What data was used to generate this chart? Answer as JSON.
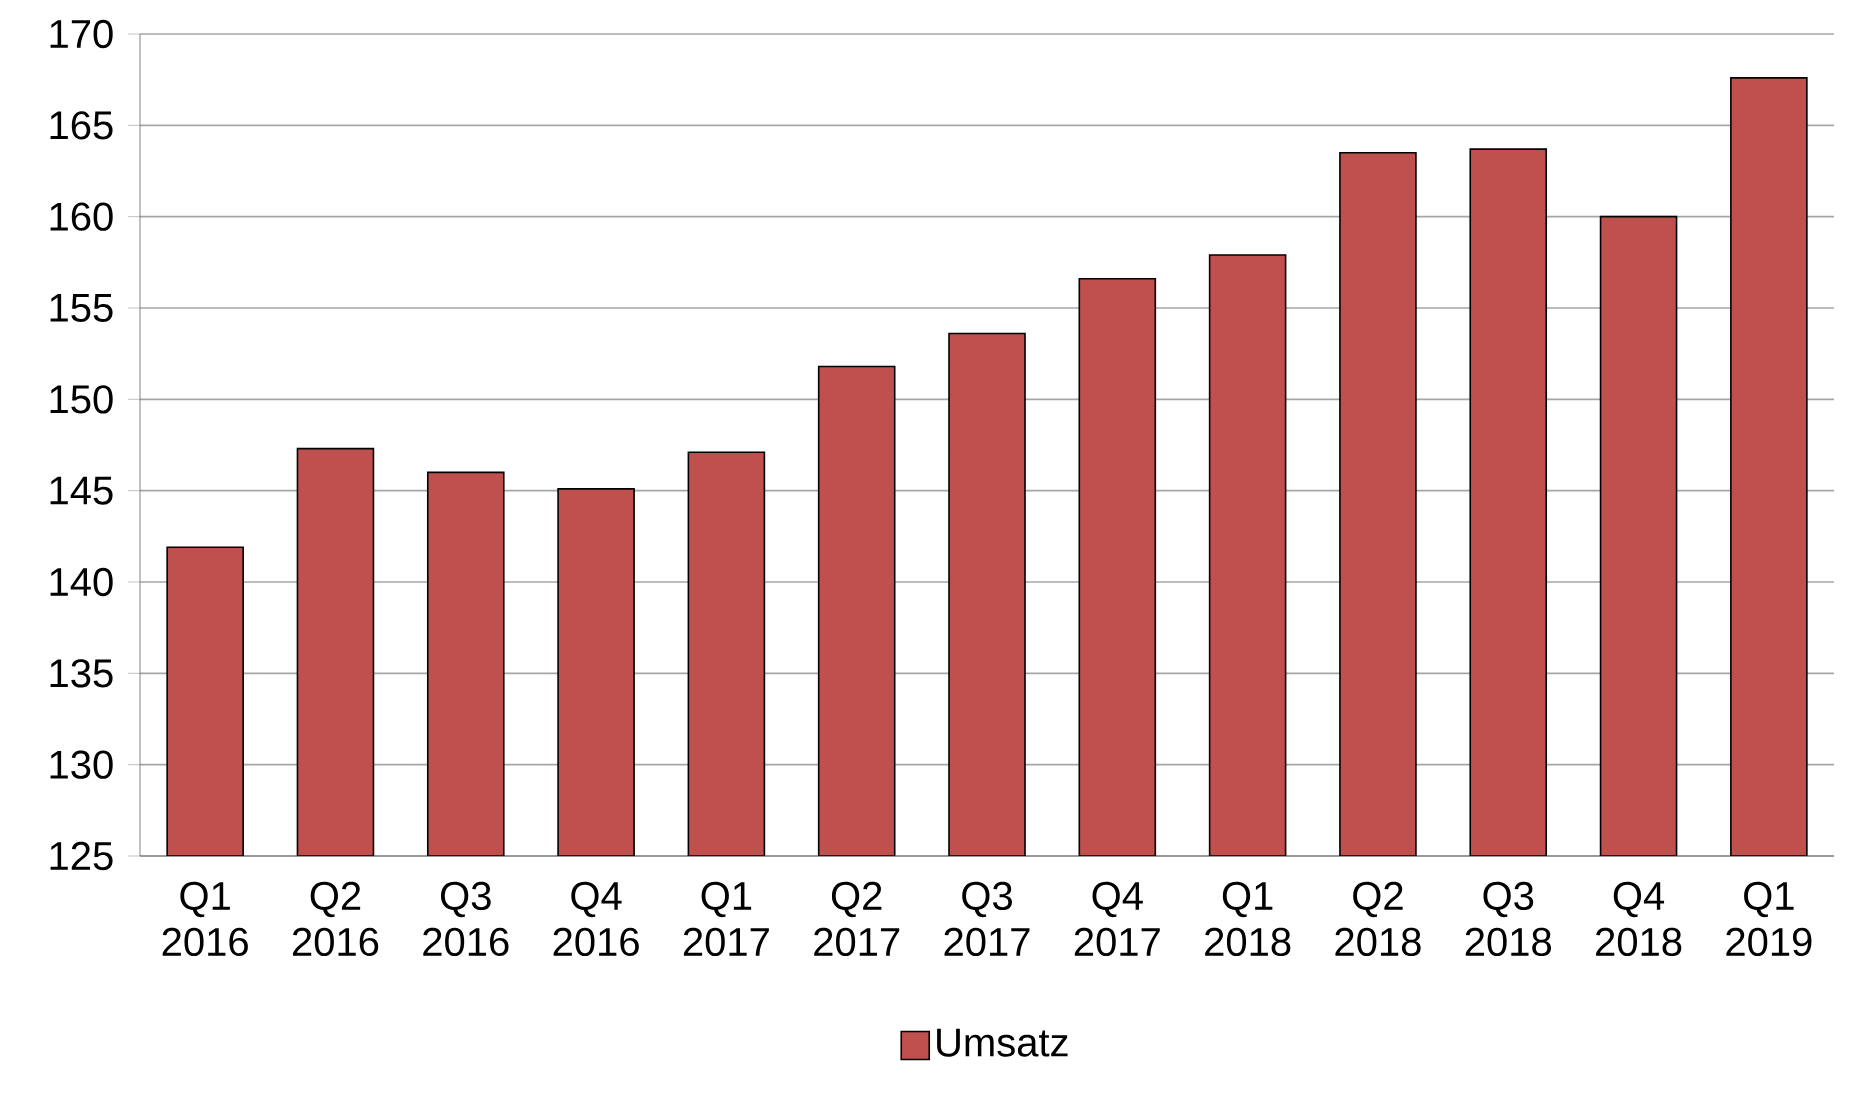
{
  "chart_data": {
    "type": "bar",
    "categories": [
      "Q1 2016",
      "Q2 2016",
      "Q3 2016",
      "Q4 2016",
      "Q1 2017",
      "Q2 2017",
      "Q3 2017",
      "Q4 2017",
      "Q1 2018",
      "Q2 2018",
      "Q3 2018",
      "Q4 2018",
      "Q1 2019"
    ],
    "series": [
      {
        "name": "Umsatz",
        "color": "#c0504d",
        "values": [
          141.9,
          147.3,
          146.0,
          145.1,
          147.1,
          151.8,
          153.6,
          156.6,
          157.9,
          163.5,
          163.7,
          160.0,
          167.6
        ]
      }
    ],
    "ylim": [
      125,
      170
    ],
    "yticks": [
      125,
      130,
      135,
      140,
      145,
      150,
      155,
      160,
      165,
      170
    ],
    "grid": "y",
    "legend": "bottom"
  }
}
